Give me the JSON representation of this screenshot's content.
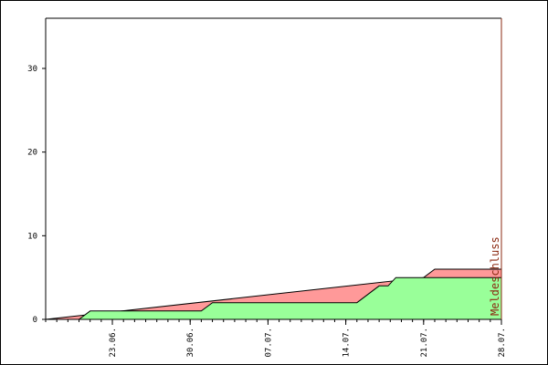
{
  "chart_data": {
    "type": "area",
    "title": "",
    "xlabel": "",
    "ylabel": "",
    "ylim": [
      0,
      36
    ],
    "y_ticks": [
      "0",
      "10",
      "20",
      "30"
    ],
    "y_tick_values": [
      0,
      10,
      20,
      30
    ],
    "x_ticks": [
      "23.06.",
      "30.06.",
      "07.07.",
      "14.07.",
      "21.07.",
      "28.07."
    ],
    "x_tick_days": [
      6,
      13,
      20,
      27,
      34,
      41
    ],
    "xlim_days": [
      0,
      41
    ],
    "grid": false,
    "annotation": {
      "text": "Meldeschluss",
      "at_day": 41,
      "color": "#8b2a12"
    },
    "series": [
      {
        "color": "#99ff99",
        "days": [
          0,
          3,
          4,
          14,
          15,
          28,
          30,
          30.8,
          31.5,
          32.5,
          41
        ],
        "values": [
          0,
          0,
          1,
          1,
          2,
          2,
          4,
          4,
          5,
          5,
          5
        ]
      },
      {
        "color": "#ff9999",
        "days": [
          0,
          34,
          35,
          41
        ],
        "values": [
          0,
          5,
          6,
          6
        ]
      }
    ]
  }
}
